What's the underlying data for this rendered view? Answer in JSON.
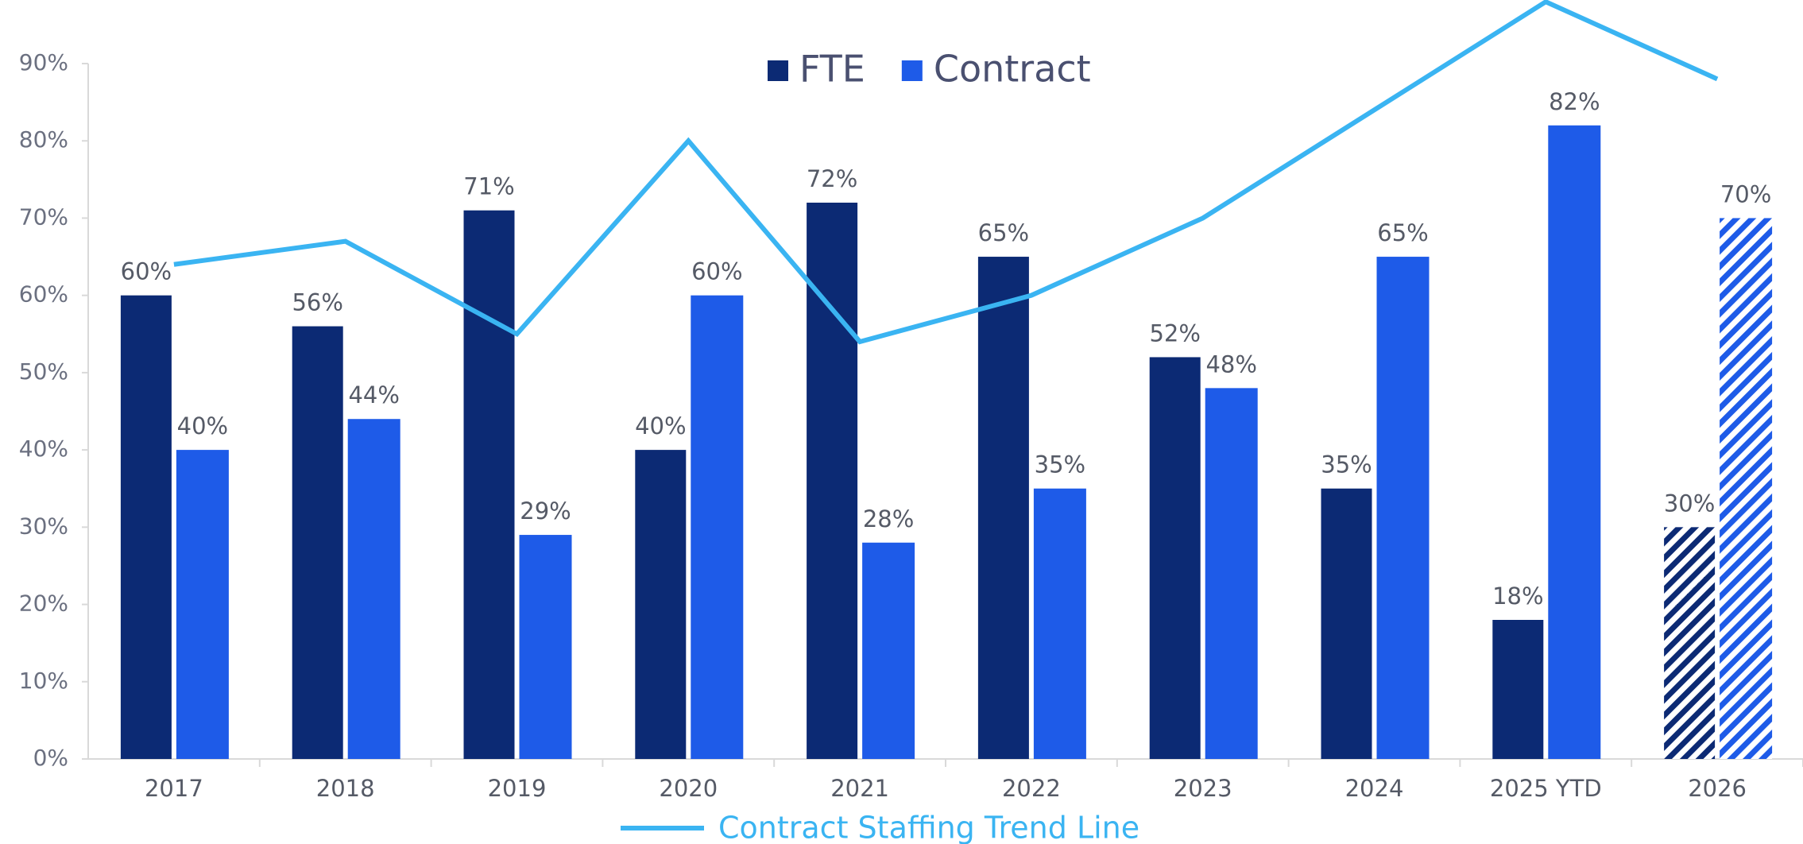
{
  "chart_data": {
    "type": "bar",
    "categories": [
      "2017",
      "2018",
      "2019",
      "2020",
      "2021",
      "2022",
      "2023",
      "2024",
      "2025 YTD",
      "2026"
    ],
    "series": [
      {
        "name": "FTE",
        "color": "#0c2a74",
        "values": [
          60,
          56,
          71,
          40,
          72,
          65,
          52,
          35,
          18,
          30
        ],
        "value_labels": [
          "60%",
          "56%",
          "71%",
          "40%",
          "72%",
          "65%",
          "52%",
          "35%",
          "18%",
          "30%"
        ]
      },
      {
        "name": "Contract",
        "color": "#1e5be8",
        "values": [
          40,
          44,
          29,
          60,
          28,
          35,
          48,
          65,
          82,
          70
        ],
        "value_labels": [
          "40%",
          "44%",
          "29%",
          "60%",
          "28%",
          "35%",
          "48%",
          "65%",
          "82%",
          "70%"
        ]
      },
      {
        "name": "Contract Staffing Trend Line",
        "type": "line",
        "color": "#3ab4f2",
        "values": [
          64,
          67,
          55,
          80,
          54,
          60,
          70,
          84,
          98,
          88
        ]
      }
    ],
    "hatched": [
      false,
      false,
      false,
      false,
      false,
      false,
      false,
      false,
      false,
      true
    ],
    "ylim": [
      0,
      90
    ],
    "yticks": [
      {
        "value": 0,
        "label": "0%"
      },
      {
        "value": 10,
        "label": "10%"
      },
      {
        "value": 20,
        "label": "20%"
      },
      {
        "value": 30,
        "label": "30%"
      },
      {
        "value": 40,
        "label": "40%"
      },
      {
        "value": 50,
        "label": "50%"
      },
      {
        "value": 60,
        "label": "60%"
      },
      {
        "value": 70,
        "label": "70%"
      },
      {
        "value": 80,
        "label": "80%"
      },
      {
        "value": 90,
        "label": "90%"
      }
    ]
  }
}
